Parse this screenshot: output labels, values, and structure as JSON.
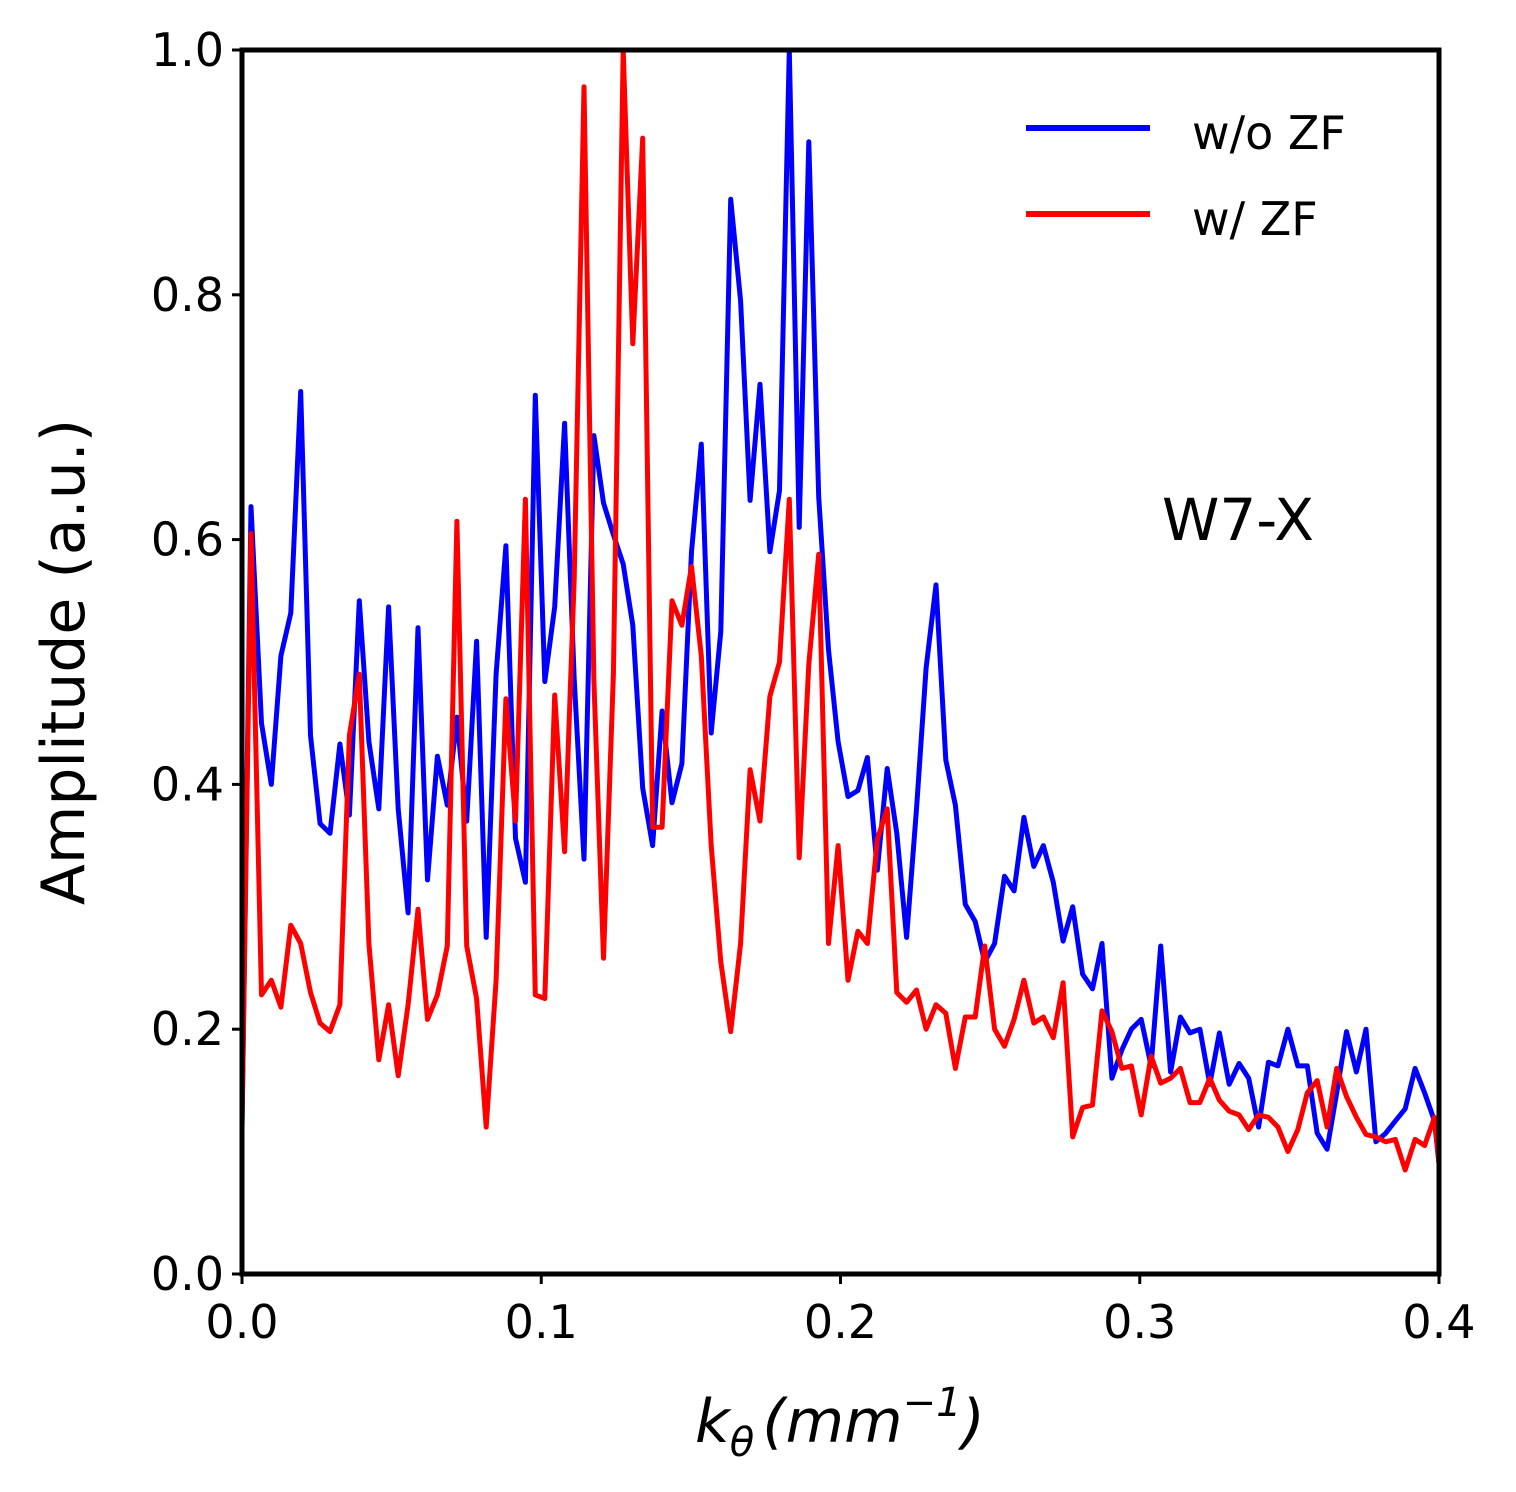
{
  "chart_data": {
    "type": "line",
    "title": "",
    "xlabel": "k_θ (mm⁻¹)",
    "xlabel_parts": {
      "symbol": "k",
      "subscript": "θ",
      "unit_open": "(mm",
      "unit_exp": "−1",
      "unit_close": ")"
    },
    "ylabel": "Amplitude (a.u.)",
    "xlim": [
      0.0,
      0.4
    ],
    "ylim": [
      0.0,
      1.0
    ],
    "xticks": [
      0.0,
      0.1,
      0.2,
      0.3,
      0.4
    ],
    "xtick_labels": [
      "0.0",
      "0.1",
      "0.2",
      "0.3",
      "0.4"
    ],
    "yticks": [
      0.0,
      0.2,
      0.4,
      0.6,
      0.8,
      1.0
    ],
    "ytick_labels": [
      "0.0",
      "0.2",
      "0.4",
      "0.6",
      "0.8",
      "1.0"
    ],
    "grid": false,
    "legend_position": "top-right",
    "annotation": "W7-X",
    "series": [
      {
        "name": "w/o ZF",
        "color": "#0000ff",
        "points": [
          [
            0.0,
            0.12
          ],
          [
            0.003,
            0.627
          ],
          [
            0.0065,
            0.45
          ],
          [
            0.0098,
            0.4
          ],
          [
            0.013,
            0.505
          ],
          [
            0.0163,
            0.54
          ],
          [
            0.0196,
            0.721
          ],
          [
            0.0229,
            0.44
          ],
          [
            0.0261,
            0.368
          ],
          [
            0.0294,
            0.36
          ],
          [
            0.0327,
            0.433
          ],
          [
            0.0359,
            0.375
          ],
          [
            0.0392,
            0.55
          ],
          [
            0.0424,
            0.435
          ],
          [
            0.0457,
            0.38
          ],
          [
            0.049,
            0.545
          ],
          [
            0.0522,
            0.38
          ],
          [
            0.0555,
            0.295
          ],
          [
            0.0588,
            0.528
          ],
          [
            0.062,
            0.322
          ],
          [
            0.0653,
            0.423
          ],
          [
            0.0686,
            0.383
          ],
          [
            0.0718,
            0.455
          ],
          [
            0.0751,
            0.37
          ],
          [
            0.0784,
            0.517
          ],
          [
            0.0816,
            0.275
          ],
          [
            0.0849,
            0.49
          ],
          [
            0.0882,
            0.595
          ],
          [
            0.0914,
            0.356
          ],
          [
            0.0947,
            0.32
          ],
          [
            0.098,
            0.718
          ],
          [
            0.1012,
            0.484
          ],
          [
            0.1045,
            0.545
          ],
          [
            0.1078,
            0.695
          ],
          [
            0.111,
            0.486
          ],
          [
            0.1143,
            0.339
          ],
          [
            0.1176,
            0.685
          ],
          [
            0.1208,
            0.63
          ],
          [
            0.1241,
            0.604
          ],
          [
            0.1274,
            0.58
          ],
          [
            0.1306,
            0.53
          ],
          [
            0.1339,
            0.397
          ],
          [
            0.1372,
            0.35
          ],
          [
            0.1404,
            0.46
          ],
          [
            0.1437,
            0.385
          ],
          [
            0.147,
            0.417
          ],
          [
            0.1502,
            0.59
          ],
          [
            0.1535,
            0.678
          ],
          [
            0.1568,
            0.442
          ],
          [
            0.16,
            0.525
          ],
          [
            0.1633,
            0.878
          ],
          [
            0.1666,
            0.795
          ],
          [
            0.1698,
            0.632
          ],
          [
            0.1731,
            0.727
          ],
          [
            0.1764,
            0.59
          ],
          [
            0.1796,
            0.64
          ],
          [
            0.1829,
            1.0
          ],
          [
            0.1862,
            0.61
          ],
          [
            0.1894,
            0.925
          ],
          [
            0.1927,
            0.635
          ],
          [
            0.196,
            0.51
          ],
          [
            0.1992,
            0.435
          ],
          [
            0.2025,
            0.39
          ],
          [
            0.2058,
            0.395
          ],
          [
            0.209,
            0.422
          ],
          [
            0.2123,
            0.33
          ],
          [
            0.2156,
            0.413
          ],
          [
            0.2188,
            0.36
          ],
          [
            0.2221,
            0.275
          ],
          [
            0.2254,
            0.38
          ],
          [
            0.2286,
            0.495
          ],
          [
            0.2319,
            0.563
          ],
          [
            0.2352,
            0.42
          ],
          [
            0.2384,
            0.383
          ],
          [
            0.2417,
            0.302
          ],
          [
            0.245,
            0.288
          ],
          [
            0.2482,
            0.255
          ],
          [
            0.2515,
            0.27
          ],
          [
            0.2548,
            0.325
          ],
          [
            0.258,
            0.313
          ],
          [
            0.2613,
            0.373
          ],
          [
            0.2646,
            0.333
          ],
          [
            0.2678,
            0.35
          ],
          [
            0.2711,
            0.32
          ],
          [
            0.2744,
            0.272
          ],
          [
            0.2776,
            0.3
          ],
          [
            0.2809,
            0.245
          ],
          [
            0.2842,
            0.233
          ],
          [
            0.2874,
            0.27
          ],
          [
            0.2907,
            0.16
          ],
          [
            0.294,
            0.183
          ],
          [
            0.2972,
            0.2
          ],
          [
            0.3005,
            0.208
          ],
          [
            0.3038,
            0.17
          ],
          [
            0.307,
            0.268
          ],
          [
            0.3103,
            0.165
          ],
          [
            0.3136,
            0.21
          ],
          [
            0.3168,
            0.197
          ],
          [
            0.3201,
            0.2
          ],
          [
            0.3234,
            0.155
          ],
          [
            0.3266,
            0.197
          ],
          [
            0.3299,
            0.155
          ],
          [
            0.3332,
            0.172
          ],
          [
            0.3364,
            0.16
          ],
          [
            0.3397,
            0.12
          ],
          [
            0.343,
            0.173
          ],
          [
            0.3462,
            0.17
          ],
          [
            0.3495,
            0.2
          ],
          [
            0.3528,
            0.17
          ],
          [
            0.356,
            0.17
          ],
          [
            0.3593,
            0.115
          ],
          [
            0.3626,
            0.102
          ],
          [
            0.3658,
            0.148
          ],
          [
            0.3691,
            0.198
          ],
          [
            0.3724,
            0.165
          ],
          [
            0.3756,
            0.2
          ],
          [
            0.3789,
            0.108
          ],
          [
            0.3822,
            0.115
          ],
          [
            0.3854,
            0.125
          ],
          [
            0.3887,
            0.135
          ],
          [
            0.392,
            0.168
          ],
          [
            0.3952,
            0.148
          ],
          [
            0.3985,
            0.125
          ],
          [
            0.4,
            0.09
          ]
        ]
      },
      {
        "name": "w/ ZF",
        "color": "#ff0000",
        "points": [
          [
            0.0,
            0.12
          ],
          [
            0.003,
            0.605
          ],
          [
            0.0065,
            0.228
          ],
          [
            0.0098,
            0.24
          ],
          [
            0.013,
            0.218
          ],
          [
            0.0163,
            0.285
          ],
          [
            0.0196,
            0.27
          ],
          [
            0.0229,
            0.23
          ],
          [
            0.0261,
            0.205
          ],
          [
            0.0294,
            0.198
          ],
          [
            0.0327,
            0.22
          ],
          [
            0.0359,
            0.44
          ],
          [
            0.0392,
            0.49
          ],
          [
            0.0424,
            0.27
          ],
          [
            0.0457,
            0.175
          ],
          [
            0.049,
            0.22
          ],
          [
            0.0522,
            0.162
          ],
          [
            0.0555,
            0.22
          ],
          [
            0.0588,
            0.298
          ],
          [
            0.062,
            0.208
          ],
          [
            0.0653,
            0.228
          ],
          [
            0.0686,
            0.268
          ],
          [
            0.0718,
            0.615
          ],
          [
            0.0751,
            0.268
          ],
          [
            0.0784,
            0.225
          ],
          [
            0.0816,
            0.12
          ],
          [
            0.0849,
            0.24
          ],
          [
            0.0882,
            0.47
          ],
          [
            0.0914,
            0.37
          ],
          [
            0.0947,
            0.633
          ],
          [
            0.098,
            0.228
          ],
          [
            0.1012,
            0.225
          ],
          [
            0.1045,
            0.473
          ],
          [
            0.1078,
            0.345
          ],
          [
            0.111,
            0.568
          ],
          [
            0.1143,
            0.97
          ],
          [
            0.1176,
            0.485
          ],
          [
            0.1208,
            0.258
          ],
          [
            0.1241,
            0.49
          ],
          [
            0.1274,
            1.0
          ],
          [
            0.1306,
            0.76
          ],
          [
            0.1339,
            0.928
          ],
          [
            0.1372,
            0.365
          ],
          [
            0.1404,
            0.365
          ],
          [
            0.1437,
            0.55
          ],
          [
            0.147,
            0.53
          ],
          [
            0.1502,
            0.578
          ],
          [
            0.1535,
            0.505
          ],
          [
            0.1568,
            0.35
          ],
          [
            0.16,
            0.255
          ],
          [
            0.1633,
            0.198
          ],
          [
            0.1666,
            0.27
          ],
          [
            0.1698,
            0.412
          ],
          [
            0.1731,
            0.37
          ],
          [
            0.1764,
            0.472
          ],
          [
            0.1796,
            0.5
          ],
          [
            0.1829,
            0.633
          ],
          [
            0.1862,
            0.34
          ],
          [
            0.1894,
            0.498
          ],
          [
            0.1927,
            0.588
          ],
          [
            0.196,
            0.27
          ],
          [
            0.1992,
            0.35
          ],
          [
            0.2025,
            0.24
          ],
          [
            0.2058,
            0.28
          ],
          [
            0.209,
            0.27
          ],
          [
            0.2123,
            0.355
          ],
          [
            0.2156,
            0.38
          ],
          [
            0.2188,
            0.23
          ],
          [
            0.2221,
            0.222
          ],
          [
            0.2254,
            0.232
          ],
          [
            0.2286,
            0.2
          ],
          [
            0.2319,
            0.22
          ],
          [
            0.2352,
            0.213
          ],
          [
            0.2384,
            0.168
          ],
          [
            0.2417,
            0.21
          ],
          [
            0.245,
            0.21
          ],
          [
            0.2482,
            0.268
          ],
          [
            0.2515,
            0.2
          ],
          [
            0.2548,
            0.186
          ],
          [
            0.258,
            0.208
          ],
          [
            0.2613,
            0.24
          ],
          [
            0.2646,
            0.205
          ],
          [
            0.2678,
            0.21
          ],
          [
            0.2711,
            0.193
          ],
          [
            0.2744,
            0.238
          ],
          [
            0.2776,
            0.112
          ],
          [
            0.2809,
            0.136
          ],
          [
            0.2842,
            0.138
          ],
          [
            0.2874,
            0.215
          ],
          [
            0.2907,
            0.198
          ],
          [
            0.294,
            0.168
          ],
          [
            0.2972,
            0.17
          ],
          [
            0.3005,
            0.13
          ],
          [
            0.3038,
            0.178
          ],
          [
            0.307,
            0.156
          ],
          [
            0.3103,
            0.16
          ],
          [
            0.3136,
            0.168
          ],
          [
            0.3168,
            0.14
          ],
          [
            0.3201,
            0.14
          ],
          [
            0.3234,
            0.16
          ],
          [
            0.3266,
            0.142
          ],
          [
            0.3299,
            0.133
          ],
          [
            0.3332,
            0.13
          ],
          [
            0.3364,
            0.118
          ],
          [
            0.3397,
            0.13
          ],
          [
            0.343,
            0.128
          ],
          [
            0.3462,
            0.12
          ],
          [
            0.3495,
            0.1
          ],
          [
            0.3528,
            0.118
          ],
          [
            0.356,
            0.148
          ],
          [
            0.3593,
            0.158
          ],
          [
            0.3626,
            0.12
          ],
          [
            0.3658,
            0.168
          ],
          [
            0.3691,
            0.145
          ],
          [
            0.3724,
            0.128
          ],
          [
            0.3756,
            0.114
          ],
          [
            0.3789,
            0.112
          ],
          [
            0.3822,
            0.108
          ],
          [
            0.3854,
            0.11
          ],
          [
            0.3887,
            0.085
          ],
          [
            0.392,
            0.11
          ],
          [
            0.3952,
            0.105
          ],
          [
            0.3985,
            0.128
          ],
          [
            0.4,
            0.09
          ]
        ]
      }
    ]
  }
}
